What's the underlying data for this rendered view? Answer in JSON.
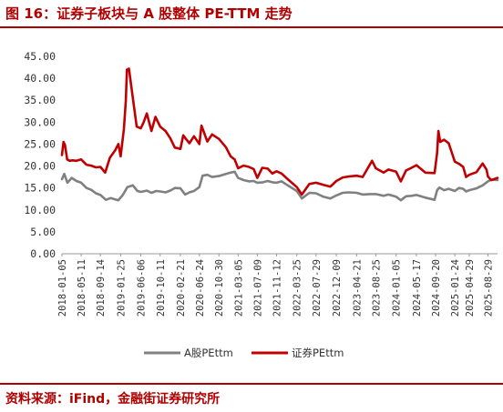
{
  "header": {
    "title": "图 16：证券子板块与 A 股整体 PE-TTM 走势"
  },
  "footer": {
    "source": "资料来源：iFind，金融街证券研究所"
  },
  "colors": {
    "accent": "#b00000",
    "series_a": "#808080",
    "series_sec": "#c00000"
  },
  "chart_data": {
    "type": "line",
    "ylim": [
      0,
      45
    ],
    "yticks": [
      "0.00",
      "5.00",
      "10.00",
      "15.00",
      "20.00",
      "25.00",
      "30.00",
      "35.00",
      "40.00",
      "45.00"
    ],
    "x_start": "2018-01-05",
    "x_end": "2025-10-31",
    "xticks": [
      "2018-01-05",
      "2018-05-11",
      "2018-09-14",
      "2019-01-25",
      "2019-06-06",
      "2019-10-11",
      "2020-02-21",
      "2020-06-24",
      "2020-10-30",
      "2021-03-05",
      "2021-07-09",
      "2021-11-12",
      "2022-03-25",
      "2022-07-29",
      "2022-12-09",
      "2023-04-21",
      "2023-08-25",
      "2024-01-05",
      "2024-05-17",
      "2024-09-20",
      "2025-01-24",
      "2025-04-29",
      "2025-08-29"
    ],
    "legend": [
      "A股PEttm",
      "证券PEttm"
    ],
    "legend_position": "bottom",
    "grid": false,
    "series": [
      {
        "name": "A股PEttm",
        "points": [
          [
            "2018-01-05",
            17.0
          ],
          [
            "2018-01-20",
            18.2
          ],
          [
            "2018-02-10",
            16.2
          ],
          [
            "2018-03-10",
            17.3
          ],
          [
            "2018-04-10",
            16.6
          ],
          [
            "2018-05-11",
            16.2
          ],
          [
            "2018-06-15",
            15.0
          ],
          [
            "2018-07-15",
            14.6
          ],
          [
            "2018-08-15",
            13.8
          ],
          [
            "2018-09-14",
            13.4
          ],
          [
            "2018-10-20",
            12.3
          ],
          [
            "2018-11-20",
            12.7
          ],
          [
            "2018-12-20",
            12.4
          ],
          [
            "2019-01-10",
            12.2
          ],
          [
            "2019-02-10",
            13.5
          ],
          [
            "2019-03-10",
            15.2
          ],
          [
            "2019-04-15",
            15.6
          ],
          [
            "2019-05-15",
            14.3
          ],
          [
            "2019-06-06",
            14.1
          ],
          [
            "2019-07-15",
            14.4
          ],
          [
            "2019-08-15",
            13.9
          ],
          [
            "2019-09-15",
            14.3
          ],
          [
            "2019-10-11",
            14.2
          ],
          [
            "2019-11-15",
            14.0
          ],
          [
            "2019-12-15",
            14.4
          ],
          [
            "2020-01-15",
            15.0
          ],
          [
            "2020-02-21",
            14.9
          ],
          [
            "2020-03-23",
            13.5
          ],
          [
            "2020-04-20",
            14.0
          ],
          [
            "2020-05-20",
            14.3
          ],
          [
            "2020-06-24",
            15.2
          ],
          [
            "2020-07-15",
            17.8
          ],
          [
            "2020-08-15",
            18.0
          ],
          [
            "2020-09-15",
            17.5
          ],
          [
            "2020-10-30",
            17.7
          ],
          [
            "2020-12-15",
            18.2
          ],
          [
            "2021-01-15",
            18.5
          ],
          [
            "2021-02-10",
            18.7
          ],
          [
            "2021-03-05",
            17.3
          ],
          [
            "2021-04-10",
            16.8
          ],
          [
            "2021-05-15",
            16.5
          ],
          [
            "2021-06-15",
            16.6
          ],
          [
            "2021-07-09",
            16.2
          ],
          [
            "2021-08-15",
            16.3
          ],
          [
            "2021-09-15",
            16.6
          ],
          [
            "2021-10-15",
            16.3
          ],
          [
            "2021-11-12",
            16.2
          ],
          [
            "2021-12-15",
            16.5
          ],
          [
            "2022-01-15",
            15.8
          ],
          [
            "2022-03-25",
            14.3
          ],
          [
            "2022-04-27",
            12.6
          ],
          [
            "2022-06-15",
            13.9
          ],
          [
            "2022-07-29",
            13.8
          ],
          [
            "2022-09-15",
            13.0
          ],
          [
            "2022-10-31",
            12.6
          ],
          [
            "2022-12-09",
            13.3
          ],
          [
            "2023-01-20",
            13.9
          ],
          [
            "2023-02-28",
            14.0
          ],
          [
            "2023-04-21",
            13.9
          ],
          [
            "2023-05-31",
            13.5
          ],
          [
            "2023-07-15",
            13.6
          ],
          [
            "2023-08-25",
            13.6
          ],
          [
            "2023-10-15",
            13.2
          ],
          [
            "2023-11-15",
            13.5
          ],
          [
            "2024-01-05",
            13.0
          ],
          [
            "2024-02-05",
            12.2
          ],
          [
            "2024-03-10",
            13.1
          ],
          [
            "2024-04-15",
            13.2
          ],
          [
            "2024-05-17",
            13.4
          ],
          [
            "2024-07-15",
            12.8
          ],
          [
            "2024-09-13",
            12.3
          ],
          [
            "2024-09-30",
            14.5
          ],
          [
            "2024-10-15",
            15.1
          ],
          [
            "2024-11-15",
            14.5
          ],
          [
            "2024-12-15",
            14.8
          ],
          [
            "2025-01-24",
            14.3
          ],
          [
            "2025-02-20",
            15.0
          ],
          [
            "2025-03-20",
            14.8
          ],
          [
            "2025-04-08",
            14.2
          ],
          [
            "2025-04-29",
            14.5
          ],
          [
            "2025-06-15",
            14.9
          ],
          [
            "2025-07-25",
            15.6
          ],
          [
            "2025-08-29",
            16.5
          ],
          [
            "2025-09-20",
            16.9
          ],
          [
            "2025-10-31",
            16.8
          ]
        ]
      },
      {
        "name": "证券PEttm",
        "points": [
          [
            "2018-01-05",
            22.5
          ],
          [
            "2018-01-15",
            25.5
          ],
          [
            "2018-01-25",
            24.8
          ],
          [
            "2018-02-08",
            21.5
          ],
          [
            "2018-02-25",
            21.2
          ],
          [
            "2018-03-15",
            21.3
          ],
          [
            "2018-04-10",
            21.2
          ],
          [
            "2018-05-11",
            21.5
          ],
          [
            "2018-06-15",
            20.3
          ],
          [
            "2018-07-15",
            20.1
          ],
          [
            "2018-08-15",
            19.7
          ],
          [
            "2018-09-14",
            19.8
          ],
          [
            "2018-10-15",
            18.5
          ],
          [
            "2018-11-15",
            21.9
          ],
          [
            "2018-12-20",
            23.6
          ],
          [
            "2019-01-10",
            25.0
          ],
          [
            "2019-01-25",
            22.2
          ],
          [
            "2019-02-15",
            28.5
          ],
          [
            "2019-02-28",
            35.0
          ],
          [
            "2019-03-07",
            42.0
          ],
          [
            "2019-03-20",
            42.2
          ],
          [
            "2019-04-15",
            35.5
          ],
          [
            "2019-05-10",
            29.0
          ],
          [
            "2019-06-06",
            28.6
          ],
          [
            "2019-06-25",
            30.0
          ],
          [
            "2019-07-15",
            32.0
          ],
          [
            "2019-08-15",
            28.0
          ],
          [
            "2019-09-10",
            31.2
          ],
          [
            "2019-10-11",
            29.0
          ],
          [
            "2019-11-15",
            28.0
          ],
          [
            "2019-12-15",
            26.4
          ],
          [
            "2020-01-15",
            24.2
          ],
          [
            "2020-02-21",
            23.9
          ],
          [
            "2020-03-10",
            27.0
          ],
          [
            "2020-03-25",
            26.3
          ],
          [
            "2020-04-20",
            25.2
          ],
          [
            "2020-05-20",
            26.8
          ],
          [
            "2020-06-24",
            25.0
          ],
          [
            "2020-07-08",
            29.2
          ],
          [
            "2020-07-20",
            28.1
          ],
          [
            "2020-08-15",
            25.6
          ],
          [
            "2020-09-15",
            27.2
          ],
          [
            "2020-10-30",
            26.2
          ],
          [
            "2020-12-15",
            24.3
          ],
          [
            "2021-01-15",
            22.2
          ],
          [
            "2021-02-10",
            21.5
          ],
          [
            "2021-03-05",
            19.5
          ],
          [
            "2021-04-10",
            20.1
          ],
          [
            "2021-05-15",
            19.8
          ],
          [
            "2021-06-15",
            19.3
          ],
          [
            "2021-07-09",
            17.3
          ],
          [
            "2021-08-10",
            19.6
          ],
          [
            "2021-09-15",
            19.4
          ],
          [
            "2021-10-15",
            18.3
          ],
          [
            "2021-11-12",
            18.8
          ],
          [
            "2021-12-15",
            18.3
          ],
          [
            "2022-01-15",
            17.3
          ],
          [
            "2022-03-25",
            15.2
          ],
          [
            "2022-04-27",
            13.5
          ],
          [
            "2022-06-15",
            15.9
          ],
          [
            "2022-07-29",
            16.2
          ],
          [
            "2022-09-15",
            15.7
          ],
          [
            "2022-10-31",
            15.3
          ],
          [
            "2022-12-09",
            16.6
          ],
          [
            "2023-01-20",
            17.4
          ],
          [
            "2023-02-28",
            17.6
          ],
          [
            "2023-04-21",
            17.8
          ],
          [
            "2023-05-31",
            17.5
          ],
          [
            "2023-07-31",
            21.2
          ],
          [
            "2023-08-25",
            19.5
          ],
          [
            "2023-10-15",
            18.5
          ],
          [
            "2023-11-15",
            19.2
          ],
          [
            "2024-01-05",
            18.7
          ],
          [
            "2024-02-05",
            16.5
          ],
          [
            "2024-03-10",
            19.0
          ],
          [
            "2024-04-15",
            19.6
          ],
          [
            "2024-05-17",
            20.2
          ],
          [
            "2024-07-15",
            18.5
          ],
          [
            "2024-09-13",
            18.4
          ],
          [
            "2024-09-30",
            23.0
          ],
          [
            "2024-10-08",
            28.0
          ],
          [
            "2024-10-20",
            25.5
          ],
          [
            "2024-11-15",
            26.0
          ],
          [
            "2024-12-15",
            25.2
          ],
          [
            "2025-01-24",
            21.0
          ],
          [
            "2025-02-20",
            20.5
          ],
          [
            "2025-03-20",
            19.8
          ],
          [
            "2025-04-08",
            17.5
          ],
          [
            "2025-04-29",
            18.0
          ],
          [
            "2025-06-15",
            18.6
          ],
          [
            "2025-07-25",
            20.6
          ],
          [
            "2025-08-20",
            19.2
          ],
          [
            "2025-08-29",
            17.6
          ],
          [
            "2025-09-20",
            16.8
          ],
          [
            "2025-10-31",
            17.3
          ]
        ]
      }
    ]
  }
}
